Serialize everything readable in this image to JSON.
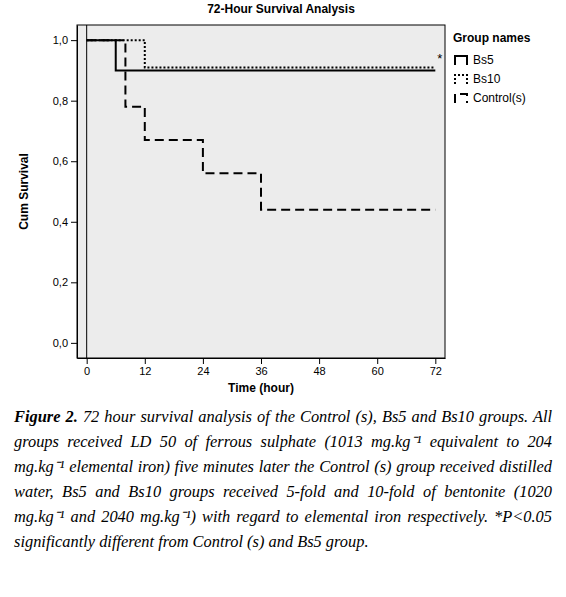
{
  "chart_data": {
    "type": "step",
    "title": "72-Hour Survival Analysis",
    "x_label": "Time (hour)",
    "y_label": "Cum Survival",
    "legend_title": "Group names",
    "legend": "right",
    "grid": false,
    "x": [
      0,
      6,
      8,
      12,
      24,
      36,
      72
    ],
    "series": [
      {
        "name": "Bs5",
        "color": "#000000",
        "line_style": "solid",
        "values": [
          1.0,
          0.9,
          0.9,
          0.9,
          0.9,
          0.9,
          0.9
        ]
      },
      {
        "name": "Bs10",
        "color": "#000000",
        "line_style": "dotted",
        "values": [
          1.0,
          1.0,
          1.0,
          0.91,
          0.91,
          0.91,
          0.91
        ]
      },
      {
        "name": "Control(s)",
        "color": "#000000",
        "line_style": "dashed",
        "values": [
          1.0,
          1.0,
          0.78,
          0.67,
          0.56,
          0.44,
          0.44
        ]
      }
    ],
    "annotations": [
      {
        "text": "*",
        "series": 1
      }
    ],
    "xlim": [
      -2,
      74
    ],
    "xticks": [
      0,
      12,
      24,
      36,
      48,
      60,
      72
    ],
    "ylim": [
      -0.05,
      1.05
    ],
    "yticks": [
      {
        "value": 0,
        "label": "0,0"
      },
      {
        "value": 0.2,
        "label": "0,2"
      },
      {
        "value": 0.4,
        "label": "0,4"
      },
      {
        "value": 0.6,
        "label": "0,6"
      },
      {
        "value": 0.8,
        "label": "0,8"
      },
      {
        "value": 1.0,
        "label": "1,0"
      }
    ],
    "caption": {
      "label": "Figure 2.",
      "text": "72 hour survival analysis of the Control (s), Bs5 and Bs10 groups. All groups received LD 50 of ferrous sulphate (1013 mg.kg⁻¹ equivalent to 204 mg.kg⁻¹ elemental iron) five minutes later the Control (s) group received distilled water, Bs5 and Bs10 groups received 5-fold and 10-fold of bentonite (1020 mg.kg⁻¹ and 2040 mg.kg⁻¹) with regard to elemental iron respectively. *P<0.05 significantly different from Control (s) and Bs5 group."
    }
  }
}
